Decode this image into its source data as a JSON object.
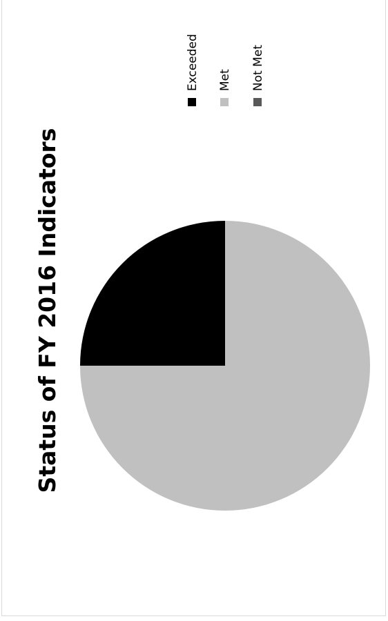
{
  "chart_data": {
    "type": "pie",
    "title": "Status of FY 2016 Indicators",
    "categories": [
      "Exceeded",
      "Met",
      "Not Met"
    ],
    "values": [
      25,
      75,
      0
    ],
    "unit": "%",
    "legend_position": "right",
    "orientation": "rotated 90° counter-clockwise",
    "colors": {
      "Exceeded": "#000000",
      "Met": "#c0c0c0",
      "Not Met": "#595959"
    }
  }
}
